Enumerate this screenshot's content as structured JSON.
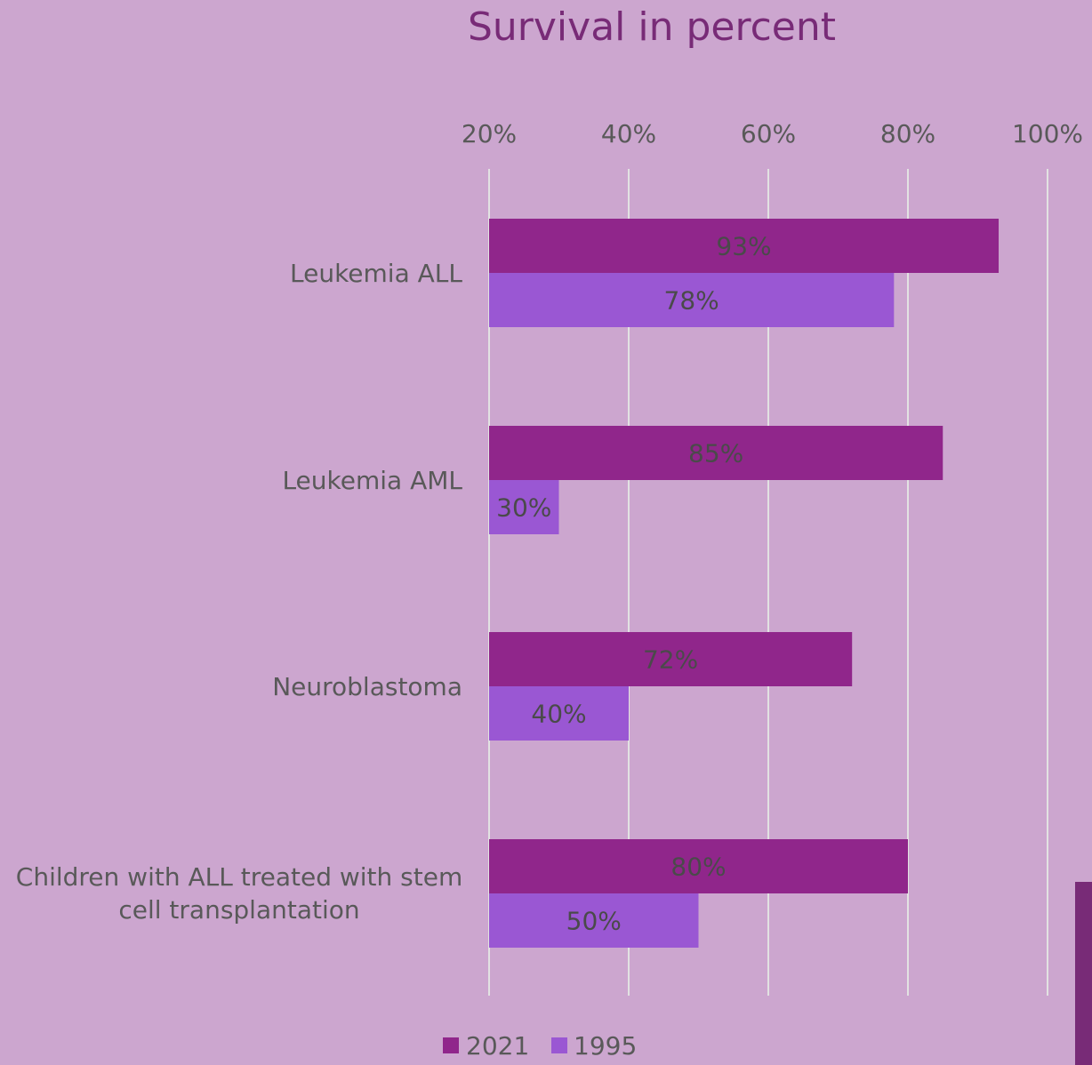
{
  "chart_data": {
    "type": "bar",
    "orientation": "horizontal",
    "title": "Survival in percent",
    "xlabel": "",
    "ylabel": "",
    "categories": [
      "Leukemia ALL",
      "Leukemia AML",
      "Neuroblastoma",
      "Children with ALL treated with stem cell transplantation"
    ],
    "category_label_lines": [
      [
        "Leukemia ALL"
      ],
      [
        "Leukemia AML"
      ],
      [
        "Neuroblastoma"
      ],
      [
        "Children with ALL treated with stem",
        "cell transplantation"
      ]
    ],
    "series": [
      {
        "name": "2021",
        "values": [
          93,
          85,
          72,
          80
        ],
        "labels": [
          "93%",
          "85%",
          "72%",
          "80%"
        ],
        "color": "#90268b"
      },
      {
        "name": "1995",
        "values": [
          78,
          30,
          40,
          50
        ],
        "labels": [
          "78%",
          "30%",
          "40%",
          "50%"
        ],
        "color": "#9a57d3"
      }
    ],
    "xlim": [
      20,
      100
    ],
    "ticks": [
      20,
      40,
      60,
      80,
      100
    ],
    "tick_labels": [
      "20%",
      "40%",
      "60%",
      "80%",
      "100%"
    ],
    "grid": true,
    "axis_position": "top",
    "legend_position": "bottom"
  },
  "colors": {
    "background": "#cca6cf",
    "title": "#782b77",
    "text": "#595959",
    "gridline": "#e2e2e2",
    "accent": "#782b77"
  }
}
